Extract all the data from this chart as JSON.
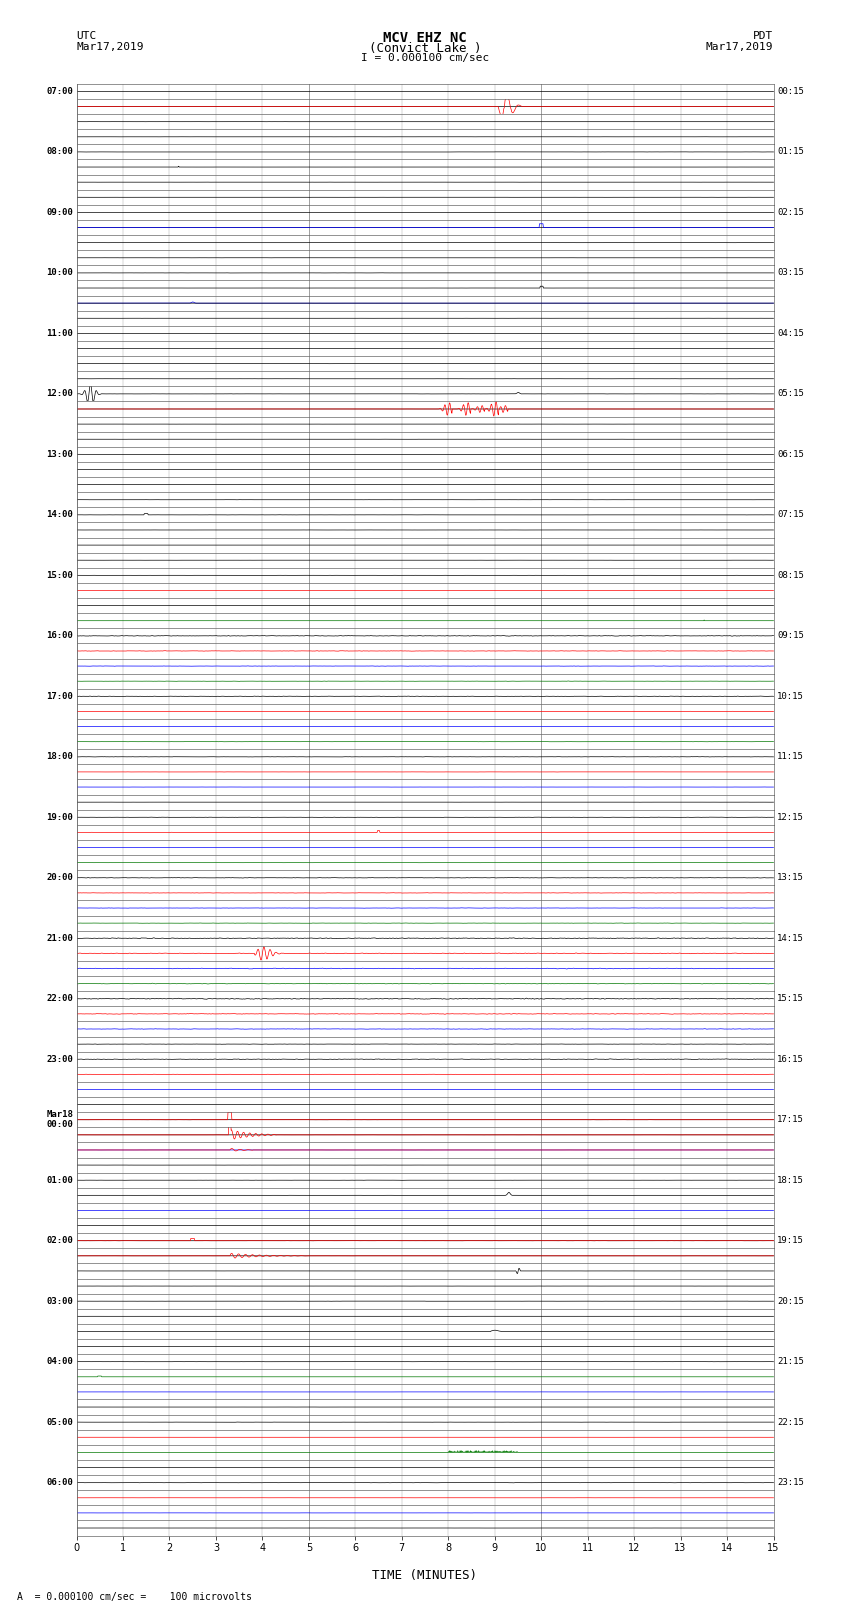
{
  "title_line1": "MCV EHZ NC",
  "title_line2": "(Convict Lake )",
  "title_line3": "I = 0.000100 cm/sec",
  "left_header_line1": "UTC",
  "left_header_line2": "Mar17,2019",
  "right_header_line1": "PDT",
  "right_header_line2": "Mar17,2019",
  "xlabel": "TIME (MINUTES)",
  "footer": "A  = 0.000100 cm/sec =    100 microvolts",
  "utc_labels": [
    "07:00",
    "08:00",
    "09:00",
    "10:00",
    "11:00",
    "12:00",
    "13:00",
    "14:00",
    "15:00",
    "16:00",
    "17:00",
    "18:00",
    "19:00",
    "20:00",
    "21:00",
    "22:00",
    "23:00",
    "Mar18\n00:00",
    "01:00",
    "02:00",
    "03:00",
    "04:00",
    "05:00",
    "06:00"
  ],
  "pdt_labels": [
    "00:15",
    "01:15",
    "02:15",
    "03:15",
    "04:15",
    "05:15",
    "06:15",
    "07:15",
    "08:15",
    "09:15",
    "10:15",
    "11:15",
    "12:15",
    "13:15",
    "14:15",
    "15:15",
    "16:15",
    "17:15",
    "18:15",
    "19:15",
    "20:15",
    "21:15",
    "22:15",
    "23:15"
  ],
  "num_rows": 24,
  "sub_rows_per_row": 4,
  "minutes_per_row": 15,
  "background_color": "#ffffff",
  "grid_color": "#888888",
  "trace_color_black": "#000000",
  "trace_color_red": "#ff0000",
  "trace_color_blue": "#0000ff",
  "trace_color_green": "#007700"
}
